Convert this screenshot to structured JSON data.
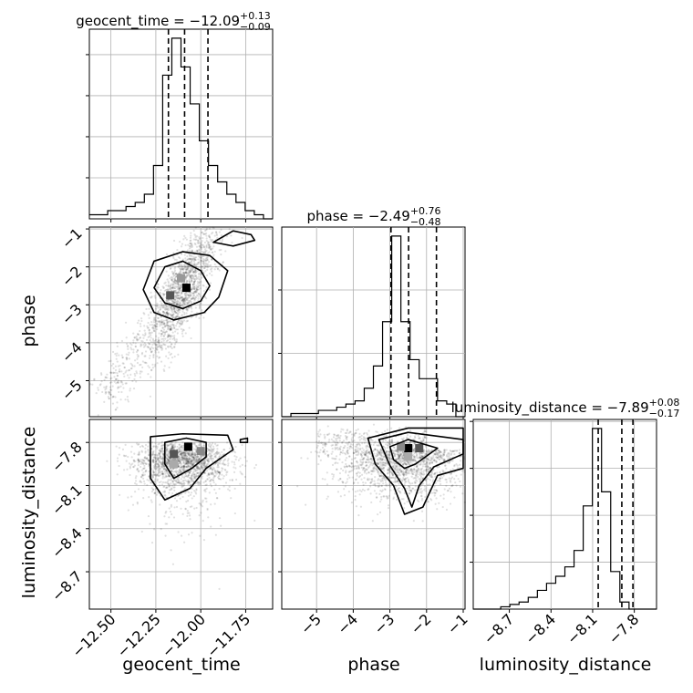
{
  "chart_data": {
    "type": "corner",
    "parameters": [
      "geocent_time",
      "phase",
      "luminosity_distance"
    ],
    "titles": [
      {
        "param": "geocent_time",
        "prefix": "geocent_time = ",
        "median": "−12.09",
        "plus": "+0.13",
        "minus": "−0.09"
      },
      {
        "param": "phase",
        "prefix": "phase = ",
        "median": "−2.49",
        "plus": "+0.76",
        "minus": "−0.48"
      },
      {
        "param": "luminosity_distance",
        "prefix": "luminosity_distance = ",
        "median": "−7.89",
        "plus": "+0.08",
        "minus": "−0.17"
      }
    ],
    "axes": {
      "geocent_time": {
        "range": [
          -12.62,
          -11.6
        ],
        "ticks": [
          -12.5,
          -12.25,
          -12.0,
          -11.75
        ],
        "tick_labels": [
          "−12.50",
          "−12.25",
          "−12.00",
          "−11.75"
        ]
      },
      "phase": {
        "range": [
          -5.95,
          -0.95
        ],
        "ticks": [
          -5,
          -4,
          -3,
          -2,
          -1
        ],
        "tick_labels": [
          "−5",
          "−4",
          "−3",
          "−2",
          "−1"
        ]
      },
      "luminosity_distance": {
        "range": [
          -8.96,
          -7.64
        ],
        "ticks": [
          -8.7,
          -8.4,
          -8.1,
          -7.8
        ],
        "tick_labels": [
          "−8.7",
          "−8.4",
          "−8.1",
          "−7.8"
        ]
      }
    },
    "diag_hist": [
      {
        "param": "geocent_time",
        "bins_low": -12.62,
        "bins_high": -11.6,
        "counts": [
          1,
          1,
          2,
          2,
          3,
          4,
          6,
          13,
          35,
          44,
          37,
          28,
          19,
          13,
          9,
          6,
          4,
          2,
          1,
          0
        ],
        "quantiles": [
          -12.18,
          -12.09,
          -11.96
        ]
      },
      {
        "param": "phase",
        "bins_low": -5.95,
        "bins_high": -0.95,
        "counts": [
          0,
          1,
          1,
          1,
          2,
          2,
          3,
          4,
          5,
          9,
          16,
          30,
          57,
          30,
          18,
          12,
          12,
          5,
          4,
          0
        ],
        "quantiles": [
          -2.97,
          -2.49,
          -1.73
        ]
      },
      {
        "param": "luminosity_distance",
        "bins_low": -8.96,
        "bins_high": -7.64,
        "counts": [
          0,
          0,
          0,
          1,
          2,
          3,
          5,
          8,
          11,
          14,
          18,
          25,
          44,
          77,
          50,
          16,
          3,
          0,
          0,
          0
        ],
        "quantiles": [
          -8.06,
          -7.89,
          -7.81
        ]
      }
    ],
    "grid": true
  }
}
